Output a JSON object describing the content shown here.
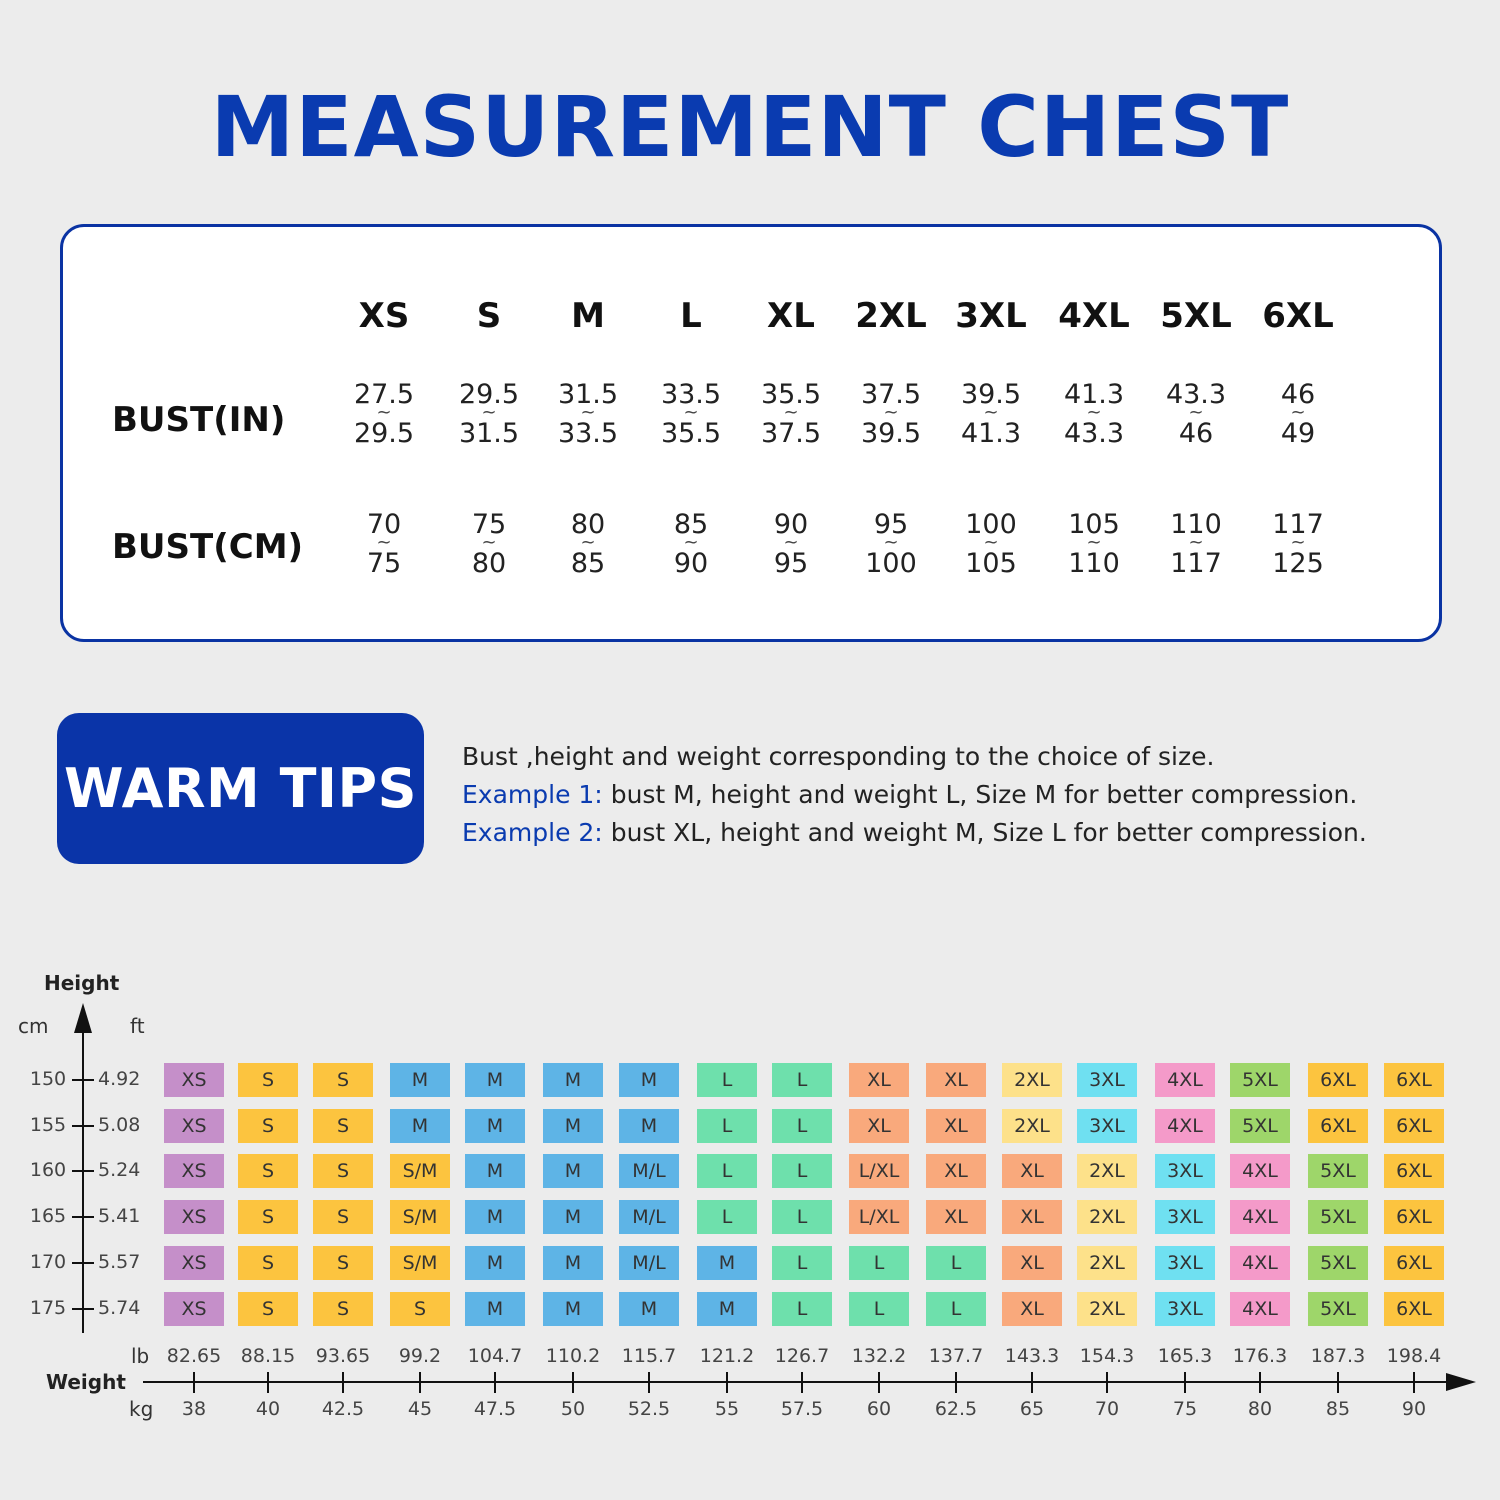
{
  "title": "MEASUREMENT CHEST",
  "bust_table": {
    "sizes": [
      "XS",
      "S",
      "M",
      "L",
      "XL",
      "2XL",
      "3XL",
      "4XL",
      "5XL",
      "6XL"
    ],
    "in_label": "BUST(IN)",
    "cm_label": "BUST(CM)",
    "tilde": "~",
    "in_ranges": [
      [
        "27.5",
        "29.5"
      ],
      [
        "29.5",
        "31.5"
      ],
      [
        "31.5",
        "33.5"
      ],
      [
        "33.5",
        "35.5"
      ],
      [
        "35.5",
        "37.5"
      ],
      [
        "37.5",
        "39.5"
      ],
      [
        "39.5",
        "41.3"
      ],
      [
        "41.3",
        "43.3"
      ],
      [
        "43.3",
        "46"
      ],
      [
        "46",
        "49"
      ]
    ],
    "cm_ranges": [
      [
        "70",
        "75"
      ],
      [
        "75",
        "80"
      ],
      [
        "80",
        "85"
      ],
      [
        "85",
        "90"
      ],
      [
        "90",
        "95"
      ],
      [
        "95",
        "100"
      ],
      [
        "100",
        "105"
      ],
      [
        "105",
        "110"
      ],
      [
        "110",
        "117"
      ],
      [
        "117",
        "125"
      ]
    ]
  },
  "warm_tips": {
    "label": "WARM TIPS",
    "line1": "Bust ,height and weight corresponding to the choice of size.",
    "ex1_label": "Example 1:",
    "ex1_text": " bust M, height and weight L, Size M for better compression.",
    "ex2_label": "Example 2:",
    "ex2_text": " bust XL, height and weight M, Size L for better compression."
  },
  "size_grid": {
    "height_title": "Height",
    "cm_unit": "cm",
    "ft_unit": "ft",
    "weight_title": "Weight",
    "lb_unit": "lb",
    "kg_unit": "kg",
    "heights_cm": [
      "150",
      "155",
      "160",
      "165",
      "170",
      "175"
    ],
    "heights_ft": [
      "4.92",
      "5.08",
      "5.24",
      "5.41",
      "5.57",
      "5.74"
    ],
    "weights_lb": [
      "82.65",
      "88.15",
      "93.65",
      "99.2",
      "104.7",
      "110.2",
      "115.7",
      "121.2",
      "126.7",
      "132.2",
      "137.7",
      "143.3",
      "154.3",
      "165.3",
      "176.3",
      "187.3",
      "198.4"
    ],
    "weights_kg": [
      "38",
      "40",
      "42.5",
      "45",
      "47.5",
      "50",
      "52.5",
      "55",
      "57.5",
      "60",
      "62.5",
      "65",
      "70",
      "75",
      "80",
      "85",
      "90"
    ],
    "rows": [
      [
        "XS",
        "S",
        "S",
        "M",
        "M",
        "M",
        "M",
        "L",
        "L",
        "XL",
        "XL",
        "2XL",
        "3XL",
        "4XL",
        "5XL",
        "6XL",
        "6XL"
      ],
      [
        "XS",
        "S",
        "S",
        "M",
        "M",
        "M",
        "M",
        "L",
        "L",
        "XL",
        "XL",
        "2XL",
        "3XL",
        "4XL",
        "5XL",
        "6XL",
        "6XL"
      ],
      [
        "XS",
        "S",
        "S",
        "S/M",
        "M",
        "M",
        "M/L",
        "L",
        "L",
        "L/XL",
        "XL",
        "XL",
        "2XL",
        "3XL",
        "4XL",
        "5XL",
        "6XL"
      ],
      [
        "XS",
        "S",
        "S",
        "S/M",
        "M",
        "M",
        "M/L",
        "L",
        "L",
        "L/XL",
        "XL",
        "XL",
        "2XL",
        "3XL",
        "4XL",
        "5XL",
        "6XL"
      ],
      [
        "XS",
        "S",
        "S",
        "S/M",
        "M",
        "M",
        "M/L",
        "M",
        "L",
        "L",
        "L",
        "XL",
        "2XL",
        "3XL",
        "4XL",
        "5XL",
        "6XL"
      ],
      [
        "XS",
        "S",
        "S",
        "S",
        "M",
        "M",
        "M",
        "M",
        "L",
        "L",
        "L",
        "XL",
        "2XL",
        "3XL",
        "4XL",
        "5XL",
        "6XL"
      ]
    ],
    "colors": {
      "XS": "#c58fc9",
      "S": "#fcc43f",
      "S/M": "#fcc43f",
      "M": "#5eb4e6",
      "M/L": "#5eb4e6",
      "L": "#6ee0ac",
      "L/XL": "#f9a97c",
      "XL": "#f9a97c",
      "2XL": "#fde18a",
      "3XL": "#6fe0f1",
      "4XL": "#f49ac9",
      "5XL": "#9ed66a",
      "6XL": "#fcc43f"
    }
  }
}
